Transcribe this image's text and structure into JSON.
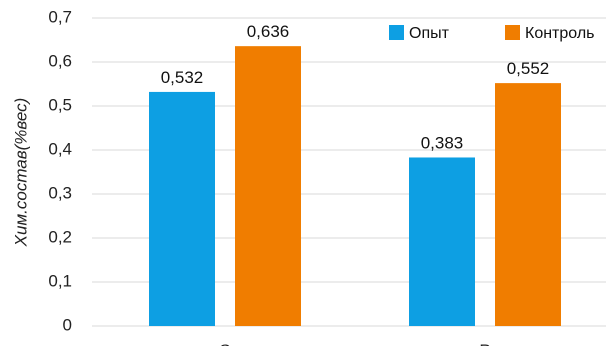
{
  "chart_data": {
    "type": "bar",
    "categories": [
      "S",
      "P"
    ],
    "series": [
      {
        "name": "Опыт",
        "values": [
          0.532,
          0.383
        ],
        "labels": [
          "0,532",
          "0,383"
        ],
        "color": "#0d9fe3"
      },
      {
        "name": "Контроль",
        "values": [
          0.636,
          0.552
        ],
        "labels": [
          "0,636",
          "0,552"
        ],
        "color": "#f07d00"
      }
    ],
    "ylabel": "Хим.состав(%вес)",
    "xlabel": "",
    "ylim": [
      0,
      0.7
    ],
    "yticks": [
      "0",
      "0,1",
      "0,2",
      "0,3",
      "0,4",
      "0,5",
      "0,6",
      "0,7"
    ],
    "grid": true,
    "legend_position": "top-right"
  }
}
